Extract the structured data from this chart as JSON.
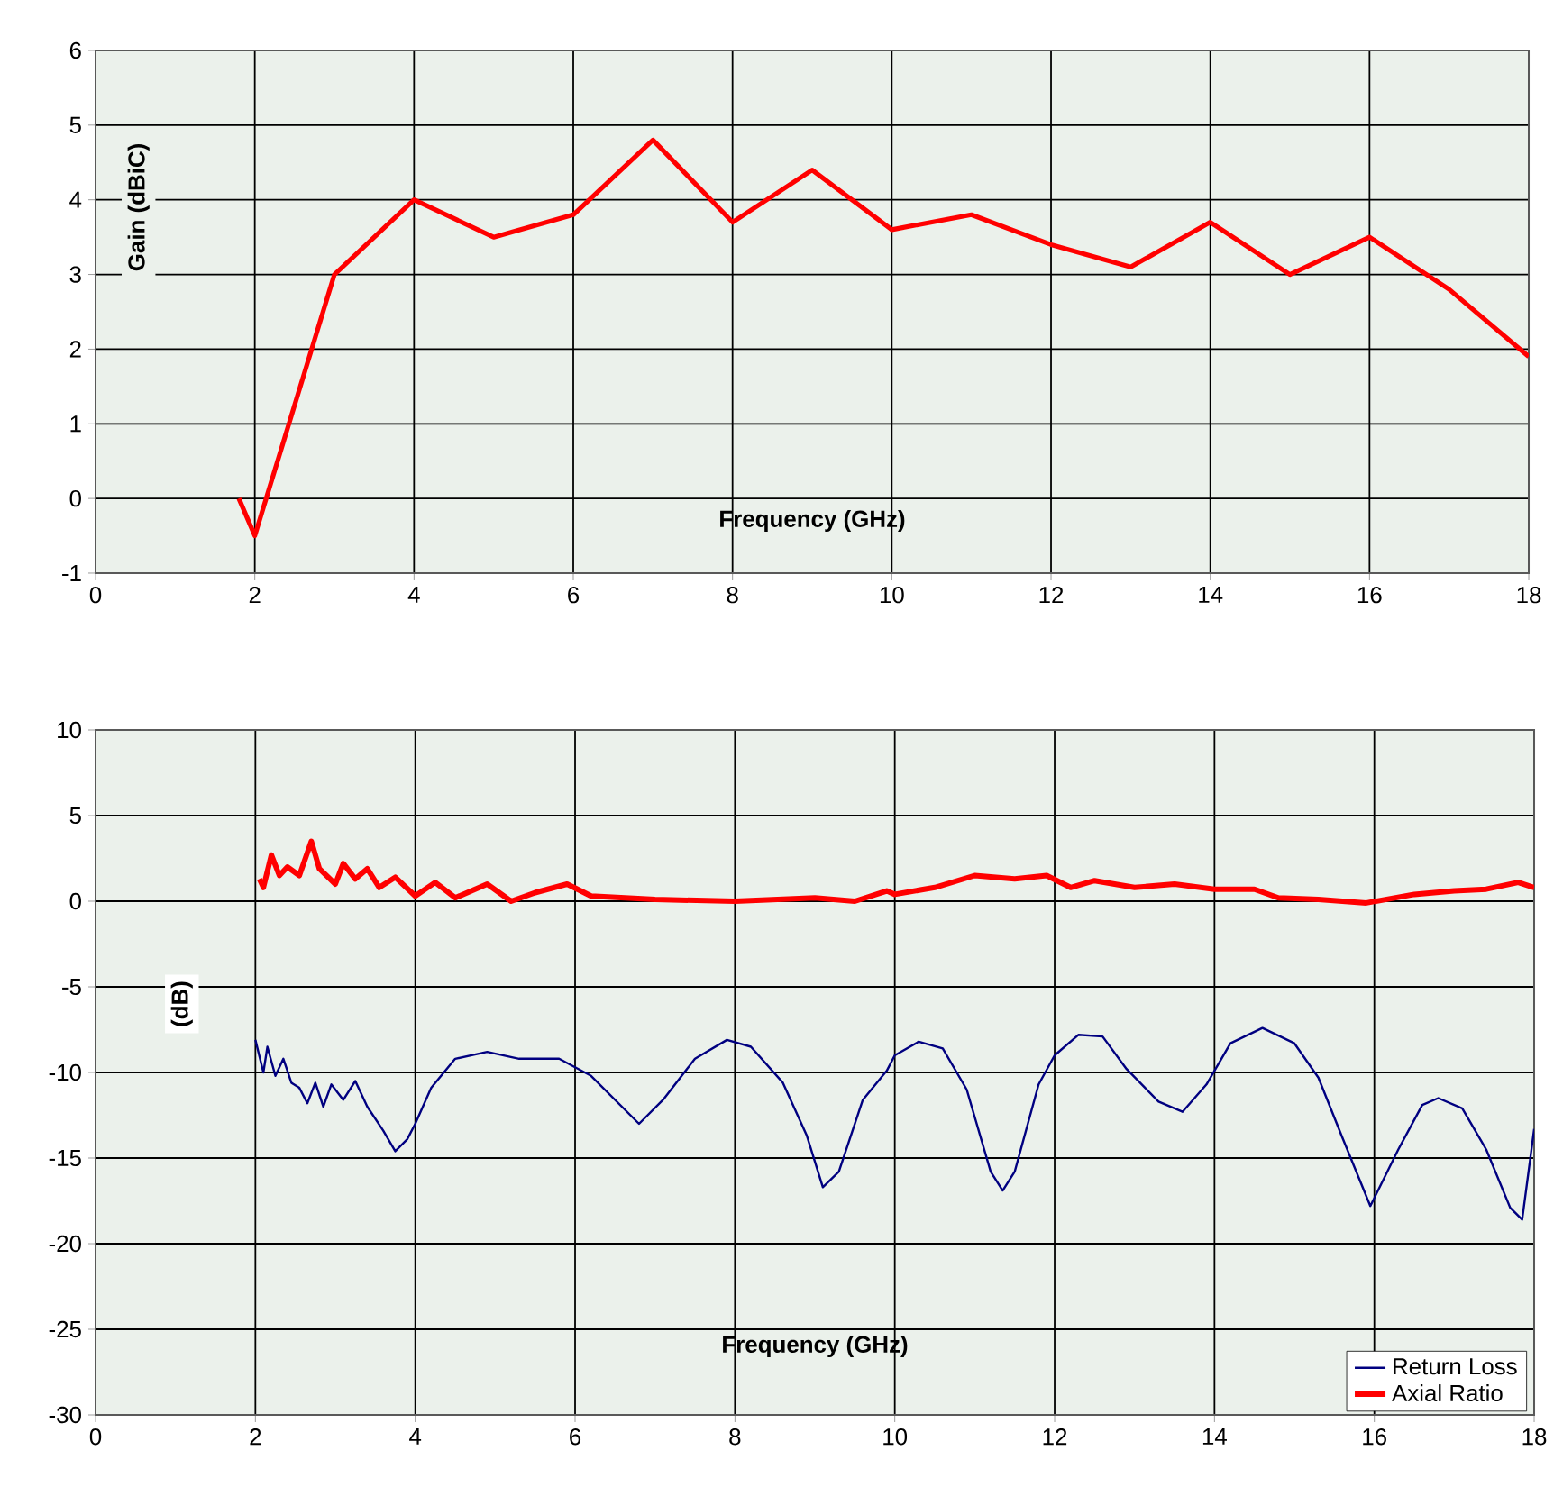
{
  "chart_data": [
    {
      "type": "line",
      "xlabel": "Frequency (GHz)",
      "ylabel": "Gain (dBiC)",
      "xlim": [
        0,
        18
      ],
      "ylim": [
        -1,
        6
      ],
      "xticks": [
        0,
        2,
        4,
        6,
        8,
        10,
        12,
        14,
        16,
        18
      ],
      "yticks": [
        -1,
        0,
        1,
        2,
        3,
        4,
        5,
        6
      ],
      "grid": true,
      "marker": "none",
      "series": [
        {
          "color": "#ff0000",
          "x": [
            1.8,
            2,
            3,
            4,
            5,
            6,
            7,
            8,
            9,
            10,
            11,
            12,
            13,
            14,
            15,
            16,
            17,
            18
          ],
          "values": [
            0,
            -0.5,
            3,
            4,
            3.5,
            3.8,
            4.8,
            3.7,
            4.4,
            3.6,
            3.8,
            3.4,
            3.1,
            3.7,
            3.0,
            3.5,
            2.8,
            1.9
          ]
        }
      ]
    },
    {
      "type": "line",
      "xlabel": "Frequency (GHz)",
      "ylabel": "(dB)",
      "xlim": [
        0,
        18
      ],
      "ylim": [
        -30,
        10
      ],
      "xticks": [
        0,
        2,
        4,
        6,
        8,
        10,
        12,
        14,
        16,
        18
      ],
      "yticks": [
        -30,
        -25,
        -20,
        -15,
        -10,
        -5,
        0,
        5,
        10
      ],
      "grid": true,
      "marker": "none",
      "legend": "bottom right",
      "series": [
        {
          "name": "Return Loss",
          "color": "#000080",
          "x": [
            2.0,
            2.1,
            2.15,
            2.25,
            2.35,
            2.45,
            2.55,
            2.65,
            2.75,
            2.85,
            2.95,
            3.1,
            3.25,
            3.4,
            3.6,
            3.75,
            3.9,
            4.0,
            4.2,
            4.5,
            4.9,
            5.3,
            5.8,
            6.2,
            6.5,
            6.8,
            7.1,
            7.5,
            7.9,
            8.2,
            8.6,
            8.9,
            9.1,
            9.3,
            9.6,
            9.9,
            10.0,
            10.3,
            10.6,
            10.9,
            11.2,
            11.35,
            11.5,
            11.8,
            12.0,
            12.3,
            12.6,
            12.9,
            13.3,
            13.6,
            13.9,
            14.2,
            14.6,
            15.0,
            15.3,
            15.6,
            15.95,
            16.3,
            16.6,
            16.8,
            17.1,
            17.4,
            17.7,
            17.85,
            18.0
          ],
          "values": [
            -8.1,
            -10.0,
            -8.5,
            -10.2,
            -9.2,
            -10.6,
            -10.9,
            -11.8,
            -10.6,
            -12.0,
            -10.7,
            -11.6,
            -10.5,
            -12.0,
            -13.4,
            -14.6,
            -13.9,
            -13.0,
            -10.9,
            -9.2,
            -8.8,
            -9.2,
            -9.2,
            -10.2,
            -11.6,
            -13.0,
            -11.6,
            -9.2,
            -8.1,
            -8.5,
            -10.6,
            -13.7,
            -16.7,
            -15.8,
            -11.6,
            -9.9,
            -9.0,
            -8.2,
            -8.6,
            -11.0,
            -15.8,
            -16.9,
            -15.8,
            -10.7,
            -9.0,
            -7.8,
            -7.9,
            -9.8,
            -11.7,
            -12.3,
            -10.7,
            -8.3,
            -7.4,
            -8.3,
            -10.3,
            -13.8,
            -17.8,
            -14.5,
            -11.9,
            -11.5,
            -12.1,
            -14.5,
            -17.9,
            -18.6,
            -13.3
          ]
        },
        {
          "name": "Axial Ratio",
          "color": "#ff0000",
          "x": [
            2.05,
            2.1,
            2.2,
            2.3,
            2.4,
            2.55,
            2.7,
            2.8,
            3.0,
            3.1,
            3.25,
            3.4,
            3.55,
            3.75,
            4.0,
            4.25,
            4.5,
            4.9,
            5.2,
            5.5,
            5.9,
            6.2,
            7.0,
            8.0,
            9.0,
            9.5,
            9.9,
            10.0,
            10.5,
            11.0,
            11.5,
            11.9,
            12.2,
            12.5,
            13.0,
            13.5,
            14.0,
            14.5,
            14.8,
            15.3,
            15.9,
            16.5,
            17.0,
            17.4,
            17.8,
            18.0
          ],
          "values": [
            1.3,
            0.8,
            2.7,
            1.5,
            2.0,
            1.5,
            3.5,
            1.9,
            1.0,
            2.2,
            1.3,
            1.9,
            0.8,
            1.4,
            0.3,
            1.1,
            0.2,
            1.0,
            0.0,
            0.5,
            1.0,
            0.3,
            0.1,
            0.0,
            0.2,
            0.0,
            0.6,
            0.4,
            0.8,
            1.5,
            1.3,
            1.5,
            0.8,
            1.2,
            0.8,
            1.0,
            0.7,
            0.7,
            0.2,
            0.1,
            -0.1,
            0.4,
            0.6,
            0.7,
            1.1,
            0.8
          ]
        }
      ]
    }
  ]
}
